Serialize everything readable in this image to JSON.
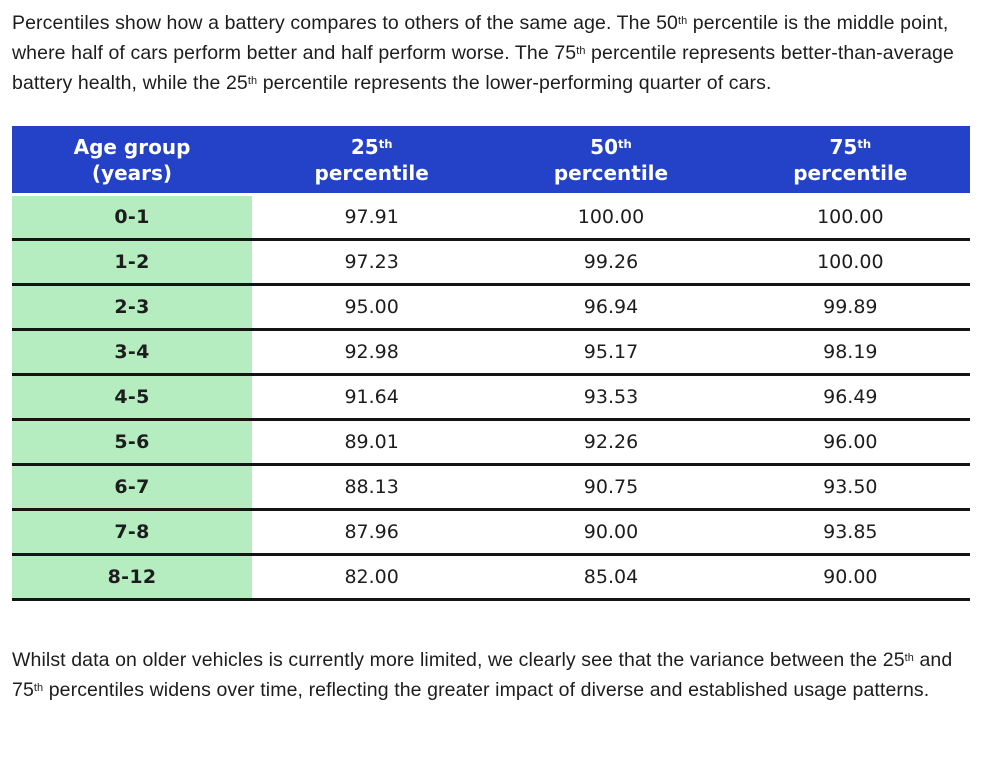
{
  "colors": {
    "header_bg": "#2342c8",
    "age_col_bg": "#b5edc0",
    "text": "#1d1d1d",
    "border": "#141414"
  },
  "intro": {
    "p1a": "Percentiles show how a battery compares to others of the same age. The 50",
    "sup1": "th",
    "p1b": " percentile is the middle point, where half of cars perform better and half perform worse. The 75",
    "sup2": "th",
    "p1c": " percentile represents better-than-average battery health, while the 25",
    "sup3": "th",
    "p1d": " percentile represents the lower-performing quarter of cars."
  },
  "table": {
    "header": {
      "age": {
        "line1": "Age group",
        "line2": "(years)"
      },
      "p25": {
        "num": "25",
        "sup": "th",
        "label": "percentile"
      },
      "p50": {
        "num": "50",
        "sup": "th",
        "label": "percentile"
      },
      "p75": {
        "num": "75",
        "sup": "th",
        "label": "percentile"
      }
    },
    "rows": [
      {
        "age": "0-1",
        "p25": "97.91",
        "p50": "100.00",
        "p75": "100.00"
      },
      {
        "age": "1-2",
        "p25": "97.23",
        "p50": "99.26",
        "p75": "100.00"
      },
      {
        "age": "2-3",
        "p25": "95.00",
        "p50": "96.94",
        "p75": "99.89"
      },
      {
        "age": "3-4",
        "p25": "92.98",
        "p50": "95.17",
        "p75": "98.19"
      },
      {
        "age": "4-5",
        "p25": "91.64",
        "p50": "93.53",
        "p75": "96.49"
      },
      {
        "age": "5-6",
        "p25": "89.01",
        "p50": "92.26",
        "p75": "96.00"
      },
      {
        "age": "6-7",
        "p25": "88.13",
        "p50": "90.75",
        "p75": "93.50"
      },
      {
        "age": "7-8",
        "p25": "87.96",
        "p50": "90.00",
        "p75": "93.85"
      },
      {
        "age": "8-12",
        "p25": "82.00",
        "p50": "85.04",
        "p75": "90.00"
      }
    ]
  },
  "outro": {
    "o1a": "Whilst data on older vehicles is currently more limited, we clearly see that the variance between the 25",
    "sup1": "th",
    "o1b": " and 75",
    "sup2": "th",
    "o1c": " percentiles widens over time, reflecting the greater impact of diverse and established usage patterns."
  }
}
